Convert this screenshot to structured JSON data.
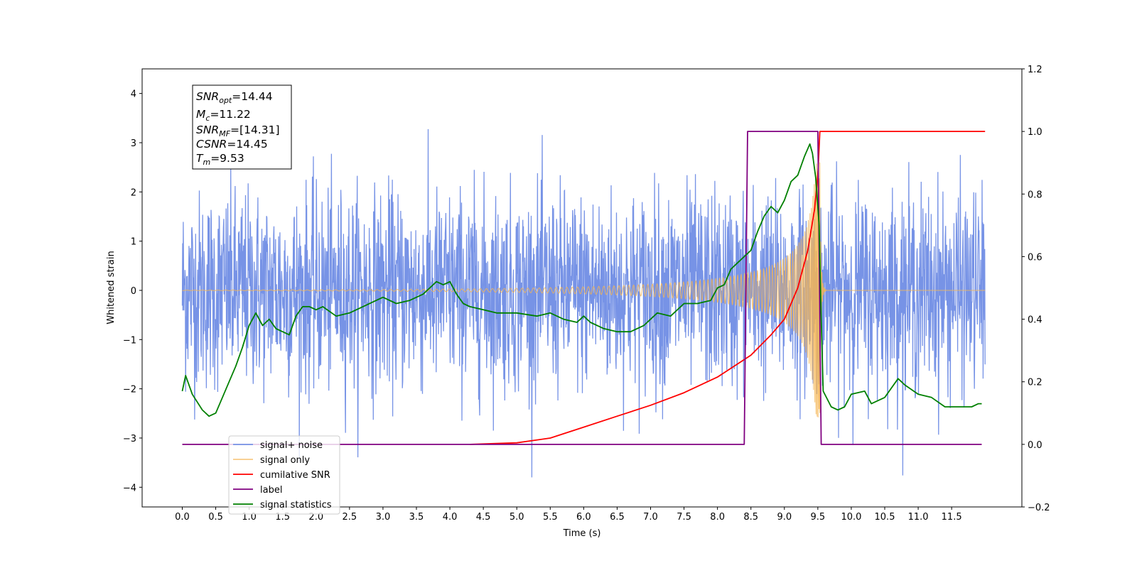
{
  "chart_data": {
    "type": "line",
    "xlabel": "Time (s)",
    "ylabel": "Whitened strain",
    "xlim": [
      -0.6,
      12.55
    ],
    "ylim": [
      -4.4,
      4.5
    ],
    "y2lim": [
      -0.2,
      1.2
    ],
    "x_ticks": [
      "0.0",
      "0.5",
      "1.0",
      "1.5",
      "2.0",
      "2.5",
      "3.0",
      "3.5",
      "4.0",
      "4.5",
      "5.0",
      "5.5",
      "6.0",
      "6.5",
      "7.0",
      "7.5",
      "8.0",
      "8.5",
      "9.0",
      "9.5",
      "10.0",
      "10.5",
      "11.0",
      "11.5"
    ],
    "y_ticks": [
      "4",
      "3",
      "2",
      "1",
      "0",
      "−1",
      "−2",
      "−3",
      "−4"
    ],
    "y2_ticks": [
      "1.2",
      "1.0",
      "0.8",
      "0.6",
      "0.4",
      "0.2",
      "0.0",
      "−0.2"
    ],
    "legend_position": "lower-left",
    "annotation": {
      "snr_opt": {
        "base": "SNR",
        "sub": "opt",
        "value": "=14.44"
      },
      "mc": {
        "base": "M",
        "sub": "c",
        "value": "=11.22"
      },
      "snr_mf": {
        "base": "SNR",
        "sub": "MF",
        "value": "=[14.31]"
      },
      "csnr": {
        "base": "CSNR",
        "sub": "",
        "value": "=14.45"
      },
      "tm": {
        "base": "T",
        "sub": "m",
        "value": "=9.53"
      }
    },
    "series": [
      {
        "name": "signal+ noise",
        "color": "#7793e6",
        "axis": "left",
        "kind": "noise",
        "x_range": [
          0.0,
          12.0
        ],
        "std": 1.0,
        "y_range": [
          -3.8,
          4.1
        ]
      },
      {
        "name": "signal only",
        "color": "#f5b553",
        "axis": "left",
        "kind": "chirp",
        "x_range": [
          0.0,
          12.0
        ],
        "merger_time": 9.53,
        "peak_amplitude": 2.6
      },
      {
        "name": "cumilative SNR",
        "color": "#ff0000",
        "axis": "right",
        "kind": "line",
        "points": [
          [
            4.3,
            0.0
          ],
          [
            5.0,
            0.005
          ],
          [
            5.5,
            0.02
          ],
          [
            6.0,
            0.055
          ],
          [
            6.5,
            0.09
          ],
          [
            7.0,
            0.125
          ],
          [
            7.5,
            0.165
          ],
          [
            8.0,
            0.215
          ],
          [
            8.5,
            0.285
          ],
          [
            8.8,
            0.35
          ],
          [
            9.0,
            0.4
          ],
          [
            9.2,
            0.5
          ],
          [
            9.35,
            0.62
          ],
          [
            9.45,
            0.75
          ],
          [
            9.5,
            0.86
          ],
          [
            9.53,
            1.0
          ],
          [
            12.0,
            1.0
          ]
        ]
      },
      {
        "name": "label",
        "color": "#800080",
        "axis": "right",
        "kind": "line",
        "points": [
          [
            0.0,
            0.0
          ],
          [
            8.4,
            0.0
          ],
          [
            8.45,
            1.0
          ],
          [
            9.5,
            1.0
          ],
          [
            9.55,
            0.0
          ],
          [
            11.95,
            0.0
          ]
        ]
      },
      {
        "name": "signal statistics",
        "color": "#008000",
        "axis": "right",
        "kind": "line",
        "points": [
          [
            0.0,
            0.17
          ],
          [
            0.05,
            0.22
          ],
          [
            0.15,
            0.16
          ],
          [
            0.3,
            0.11
          ],
          [
            0.4,
            0.09
          ],
          [
            0.5,
            0.1
          ],
          [
            0.6,
            0.15
          ],
          [
            0.7,
            0.2
          ],
          [
            0.8,
            0.25
          ],
          [
            0.9,
            0.31
          ],
          [
            1.0,
            0.38
          ],
          [
            1.1,
            0.42
          ],
          [
            1.2,
            0.38
          ],
          [
            1.3,
            0.4
          ],
          [
            1.4,
            0.37
          ],
          [
            1.5,
            0.36
          ],
          [
            1.6,
            0.35
          ],
          [
            1.7,
            0.41
          ],
          [
            1.8,
            0.44
          ],
          [
            1.9,
            0.44
          ],
          [
            2.0,
            0.43
          ],
          [
            2.1,
            0.44
          ],
          [
            2.3,
            0.41
          ],
          [
            2.5,
            0.42
          ],
          [
            2.7,
            0.44
          ],
          [
            2.9,
            0.46
          ],
          [
            3.0,
            0.47
          ],
          [
            3.2,
            0.45
          ],
          [
            3.4,
            0.46
          ],
          [
            3.6,
            0.48
          ],
          [
            3.7,
            0.5
          ],
          [
            3.8,
            0.52
          ],
          [
            3.9,
            0.51
          ],
          [
            4.0,
            0.52
          ],
          [
            4.1,
            0.48
          ],
          [
            4.2,
            0.45
          ],
          [
            4.3,
            0.44
          ],
          [
            4.5,
            0.43
          ],
          [
            4.7,
            0.42
          ],
          [
            5.0,
            0.42
          ],
          [
            5.3,
            0.41
          ],
          [
            5.5,
            0.42
          ],
          [
            5.7,
            0.4
          ],
          [
            5.9,
            0.39
          ],
          [
            6.0,
            0.41
          ],
          [
            6.1,
            0.39
          ],
          [
            6.3,
            0.37
          ],
          [
            6.5,
            0.36
          ],
          [
            6.7,
            0.36
          ],
          [
            6.9,
            0.38
          ],
          [
            7.1,
            0.42
          ],
          [
            7.3,
            0.41
          ],
          [
            7.5,
            0.45
          ],
          [
            7.7,
            0.45
          ],
          [
            7.9,
            0.46
          ],
          [
            8.0,
            0.5
          ],
          [
            8.1,
            0.51
          ],
          [
            8.2,
            0.56
          ],
          [
            8.3,
            0.58
          ],
          [
            8.4,
            0.6
          ],
          [
            8.5,
            0.62
          ],
          [
            8.6,
            0.68
          ],
          [
            8.7,
            0.73
          ],
          [
            8.8,
            0.76
          ],
          [
            8.9,
            0.74
          ],
          [
            9.0,
            0.78
          ],
          [
            9.1,
            0.84
          ],
          [
            9.2,
            0.86
          ],
          [
            9.3,
            0.92
          ],
          [
            9.38,
            0.96
          ],
          [
            9.42,
            0.93
          ],
          [
            9.47,
            0.85
          ],
          [
            9.52,
            0.7
          ],
          [
            9.55,
            0.4
          ],
          [
            9.58,
            0.17
          ],
          [
            9.7,
            0.12
          ],
          [
            9.8,
            0.11
          ],
          [
            9.9,
            0.12
          ],
          [
            10.0,
            0.16
          ],
          [
            10.2,
            0.17
          ],
          [
            10.3,
            0.13
          ],
          [
            10.5,
            0.15
          ],
          [
            10.6,
            0.18
          ],
          [
            10.7,
            0.21
          ],
          [
            10.8,
            0.19
          ],
          [
            11.0,
            0.16
          ],
          [
            11.2,
            0.15
          ],
          [
            11.4,
            0.12
          ],
          [
            11.6,
            0.12
          ],
          [
            11.8,
            0.12
          ],
          [
            11.9,
            0.13
          ],
          [
            11.95,
            0.13
          ]
        ]
      }
    ]
  }
}
